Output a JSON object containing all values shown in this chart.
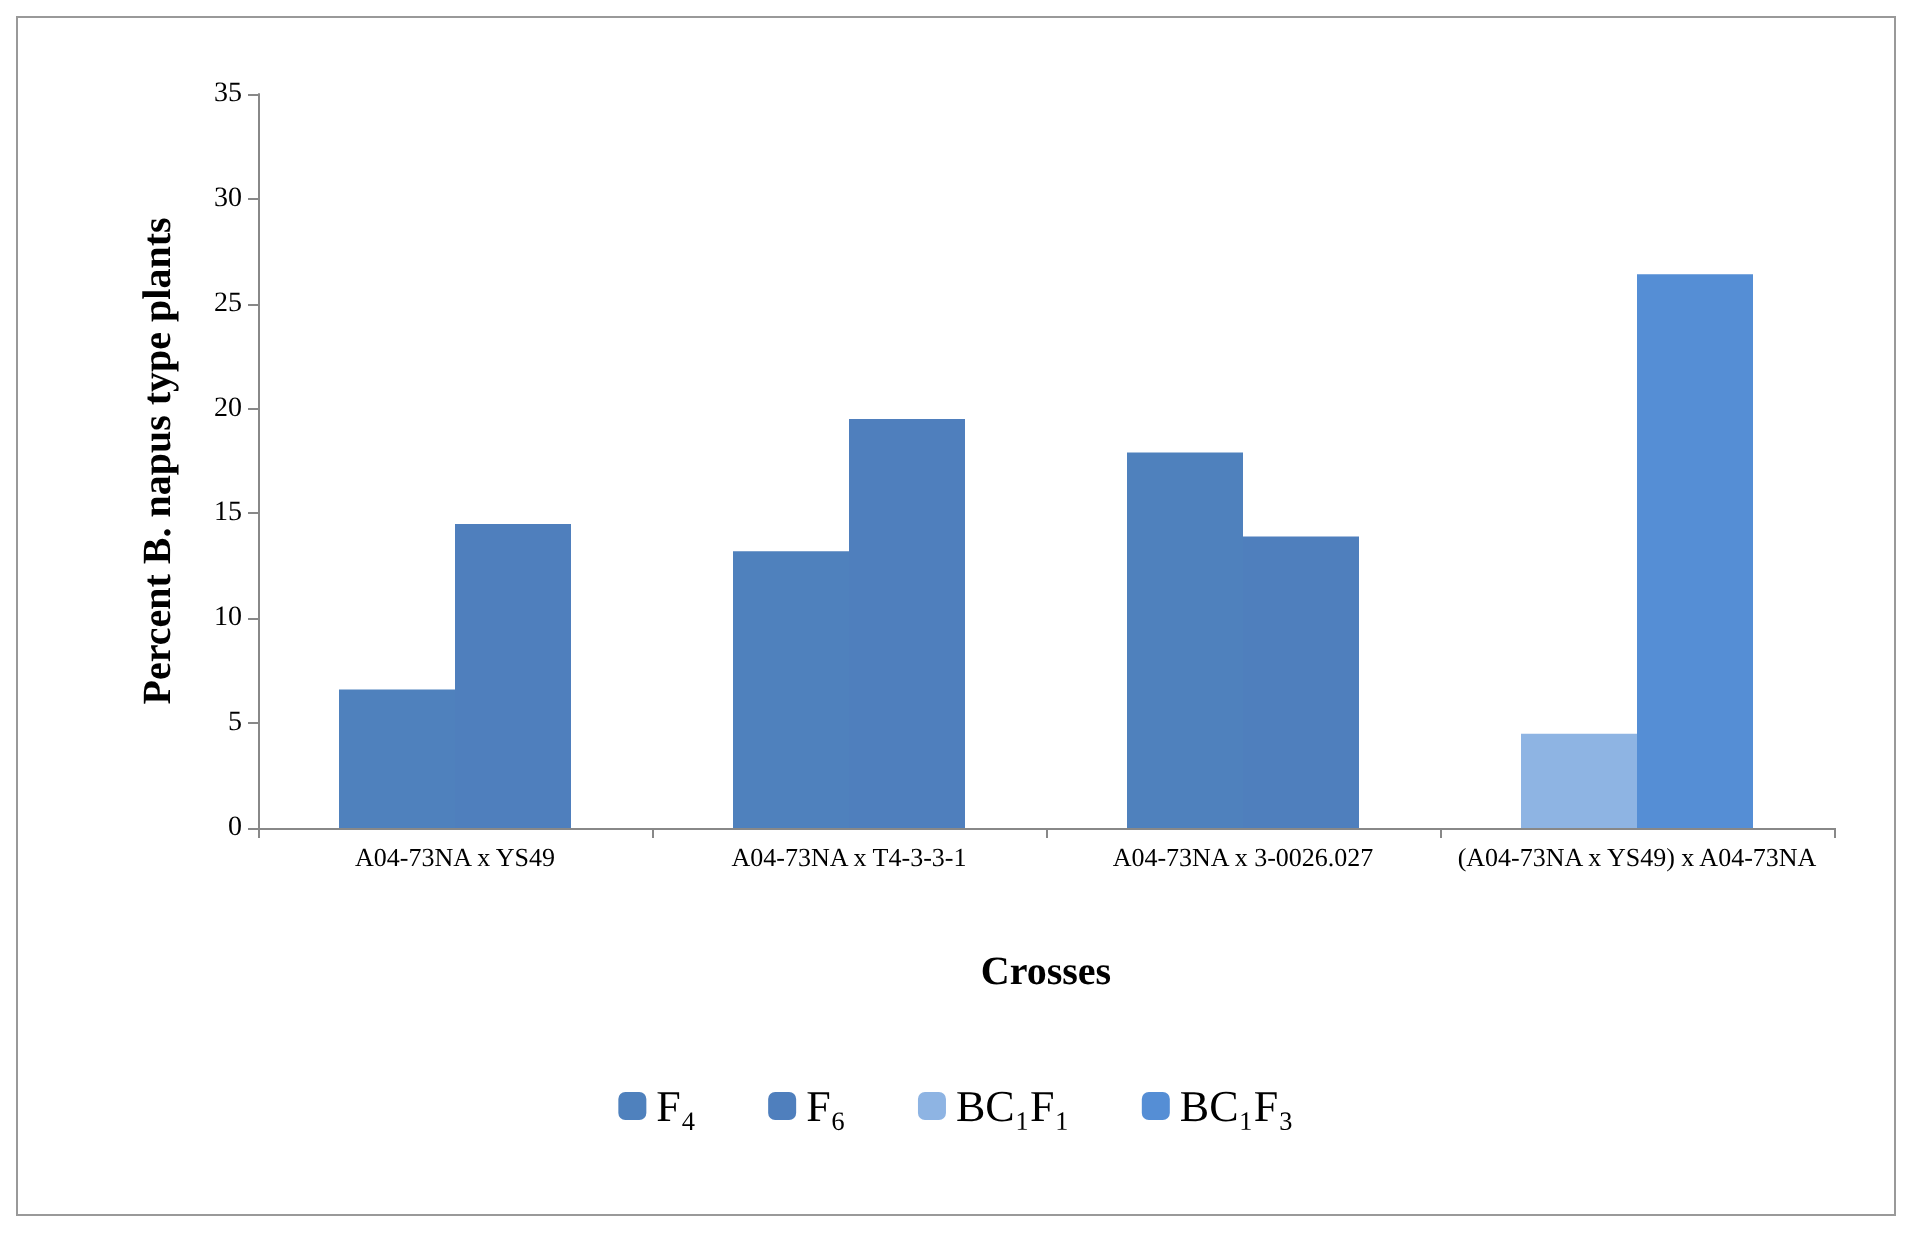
{
  "chart_data": {
    "type": "bar",
    "xlabel": "Crosses",
    "ylabel": "Percent B. napus type plants",
    "categories": [
      "A04-73NA x YS49",
      "A04-73NA x T4-3-3-1",
      "A04-73NA x 3-0026.027",
      "(A04-73NA x YS49) x A04-73NA"
    ],
    "series": [
      {
        "name": "F₄",
        "color": "#4f81bd",
        "values": [
          6.6,
          13.2,
          17.9,
          null
        ]
      },
      {
        "name": "F₆",
        "color": "#4f7fbd",
        "values": [
          14.5,
          19.5,
          13.9,
          null
        ]
      },
      {
        "name": "BC₁F₁",
        "color": "#8eb4e3",
        "values": [
          null,
          null,
          null,
          4.5
        ]
      },
      {
        "name": "BC₁F₃",
        "color": "#558ed5",
        "values": [
          null,
          null,
          null,
          26.4
        ]
      }
    ],
    "ylim": [
      0,
      35
    ],
    "yticks": [
      0,
      5,
      10,
      15,
      20,
      25,
      30,
      35
    ],
    "grid": false,
    "legend": "bottom"
  }
}
